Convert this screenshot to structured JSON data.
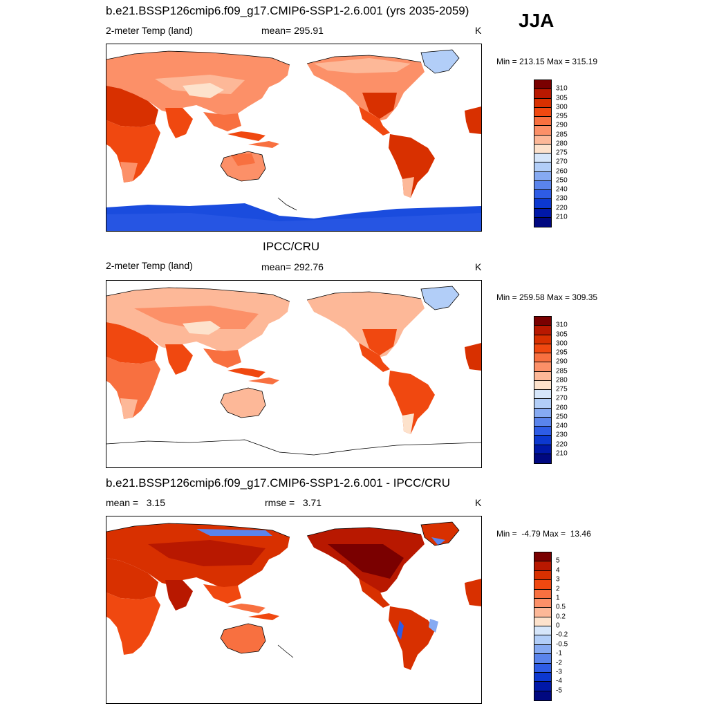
{
  "season": "JJA",
  "panels": [
    {
      "title": "b.e21.BSSP126cmip6.f09_g17.CMIP6-SSP1-2.6.001 (yrs 2035-2059)",
      "left_label": "2-meter Temp (land)",
      "center_label": "mean= 295.91",
      "units": "K",
      "minmax": "Min = 213.15 Max = 315.19",
      "colorbar": {
        "labels": [
          "310",
          "305",
          "300",
          "295",
          "290",
          "285",
          "280",
          "275",
          "270",
          "260",
          "250",
          "240",
          "230",
          "220",
          "210"
        ],
        "colors": [
          "#7a0000",
          "#b81800",
          "#d83000",
          "#f04810",
          "#f87040",
          "#fc9068",
          "#fdb898",
          "#fde2cc",
          "#d6e6fa",
          "#b2cef8",
          "#86aaf2",
          "#5a84ec",
          "#2e5ce6",
          "#0c38d0",
          "#0018a8",
          "#000880"
        ]
      }
    },
    {
      "title": "IPCC/CRU",
      "left_label": "2-meter Temp (land)",
      "center_label": "mean= 292.76",
      "units": "K",
      "minmax": "Min = 259.58 Max = 309.35",
      "colorbar": {
        "labels": [
          "310",
          "305",
          "300",
          "295",
          "290",
          "285",
          "280",
          "275",
          "270",
          "260",
          "250",
          "240",
          "230",
          "220",
          "210"
        ],
        "colors": [
          "#7a0000",
          "#b81800",
          "#d83000",
          "#f04810",
          "#f87040",
          "#fc9068",
          "#fdb898",
          "#fde2cc",
          "#d6e6fa",
          "#b2cef8",
          "#86aaf2",
          "#5a84ec",
          "#2e5ce6",
          "#0c38d0",
          "#0018a8",
          "#000880"
        ]
      }
    },
    {
      "title": "b.e21.BSSP126cmip6.f09_g17.CMIP6-SSP1-2.6.001 - IPCC/CRU",
      "left_label": "mean =   3.15",
      "center_label": "rmse =   3.71",
      "units": "K",
      "minmax": "Min =  -4.79 Max =  13.46",
      "colorbar": {
        "labels": [
          "5",
          "4",
          "3",
          "2",
          "1",
          "0.5",
          "0.2",
          "0",
          "-0.2",
          "-0.5",
          "-1",
          "-2",
          "-3",
          "-4",
          "-5"
        ],
        "colors": [
          "#7a0000",
          "#b81800",
          "#d83000",
          "#f04810",
          "#f87040",
          "#fc9068",
          "#fdb898",
          "#fde2cc",
          "#d6e6fa",
          "#b2cef8",
          "#86aaf2",
          "#5a84ec",
          "#2e5ce6",
          "#0c38d0",
          "#0018a8",
          "#000880"
        ]
      }
    }
  ]
}
